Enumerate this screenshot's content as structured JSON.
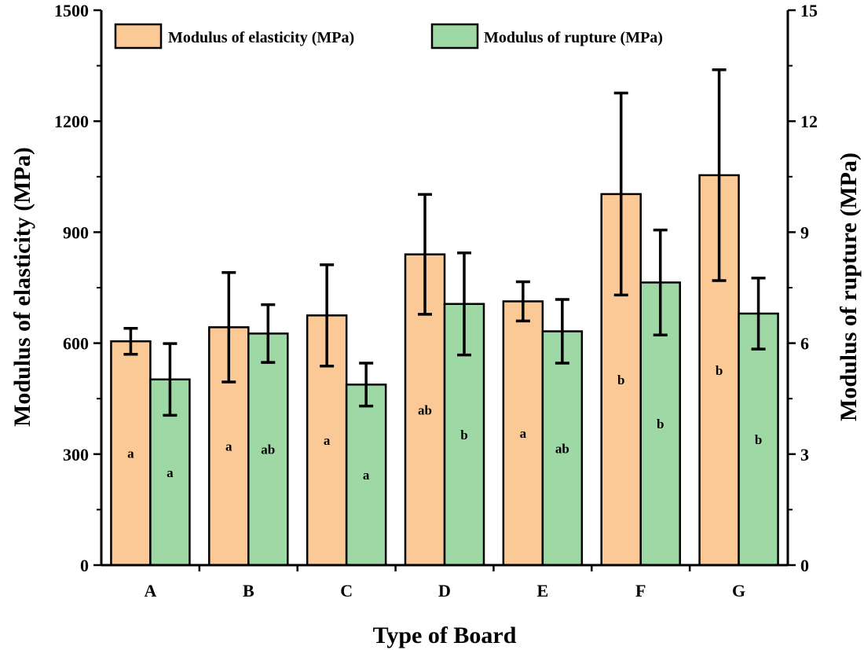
{
  "chart_data": {
    "type": "bar",
    "xlabel": "Type of Board",
    "ylabel_left": "Modulus of elasticity (MPa)",
    "ylabel_right": "Modulus of rupture (MPa)",
    "ylim_left": [
      0,
      1500
    ],
    "ylim_right": [
      0,
      15
    ],
    "yticks_left": [
      "0",
      "300",
      "600",
      "900",
      "1200",
      "1500"
    ],
    "yticks_right": [
      "0",
      "3",
      "6",
      "9",
      "12",
      "15"
    ],
    "categories": [
      "A",
      "B",
      "C",
      "D",
      "E",
      "F",
      "G"
    ],
    "legend_position": "top",
    "grid": false,
    "series": [
      {
        "name": "Modulus of elasticity (MPa)",
        "axis": "left",
        "color": "#FBC995",
        "values": [
          605,
          643,
          675,
          840,
          713,
          1003,
          1054
        ],
        "errors": [
          35,
          148,
          137,
          162,
          53,
          273,
          285
        ],
        "labels": [
          "a",
          "a",
          "a",
          "ab",
          "a",
          "b",
          "b"
        ]
      },
      {
        "name": "Modulus of rupture (MPa)",
        "axis": "right",
        "color": "#9ED9A5",
        "values": [
          5.02,
          6.26,
          4.88,
          7.06,
          6.32,
          7.64,
          6.8
        ],
        "errors": [
          0.97,
          0.78,
          0.58,
          1.38,
          0.86,
          1.42,
          0.96
        ],
        "labels": [
          "a",
          "ab",
          "a",
          "b",
          "ab",
          "b",
          "b"
        ]
      }
    ]
  }
}
